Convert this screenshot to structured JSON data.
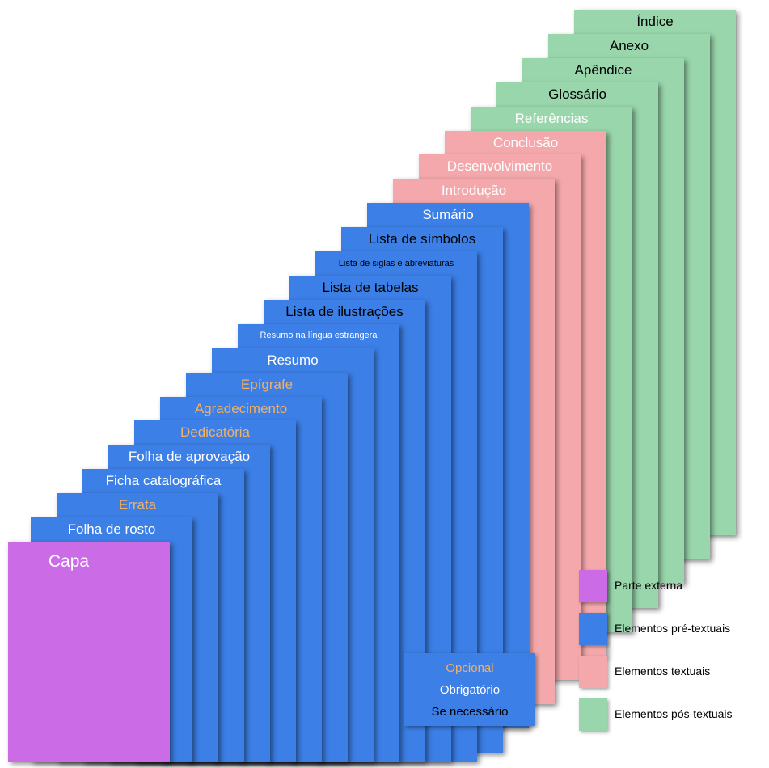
{
  "colors": {
    "externa": "#cc6be6",
    "pre": "#3c7fe6",
    "textual": "#f4a8ab",
    "pos": "#99d6ab",
    "opcional": "#f5b060",
    "obrigatorio": "#ffffff",
    "se_necessario": "#000000"
  },
  "cover": {
    "label": "Capa"
  },
  "pages": [
    {
      "label": "Folha de rosto",
      "category": "pre",
      "status": "obrigatorio"
    },
    {
      "label": "Errata",
      "category": "pre",
      "status": "opcional"
    },
    {
      "label": "Ficha catalográfica",
      "category": "pre",
      "status": "obrigatorio"
    },
    {
      "label": "Folha de aprovação",
      "category": "pre",
      "status": "obrigatorio"
    },
    {
      "label": "Dedicatória",
      "category": "pre",
      "status": "opcional"
    },
    {
      "label": "Agradecimento",
      "category": "pre",
      "status": "opcional"
    },
    {
      "label": "Epígrafe",
      "category": "pre",
      "status": "opcional"
    },
    {
      "label": "Resumo",
      "category": "pre",
      "status": "obrigatorio"
    },
    {
      "label": "Resumo na língua estrangera",
      "category": "pre",
      "status": "obrigatorio"
    },
    {
      "label": "Lista de ilustrações",
      "category": "pre",
      "status": "se_necessario"
    },
    {
      "label": "Lista de tabelas",
      "category": "pre",
      "status": "se_necessario"
    },
    {
      "label": "Lista de siglas e abreviaturas",
      "category": "pre",
      "status": "se_necessario"
    },
    {
      "label": "Lista de símbolos",
      "category": "pre",
      "status": "se_necessario"
    },
    {
      "label": "Sumário",
      "category": "pre",
      "status": "obrigatorio"
    },
    {
      "label": "Introdução",
      "category": "textual",
      "status": "obrigatorio"
    },
    {
      "label": "Desenvolvimento",
      "category": "textual",
      "status": "obrigatorio"
    },
    {
      "label": "Conclusão",
      "category": "textual",
      "status": "obrigatorio"
    },
    {
      "label": "Referências",
      "category": "pos",
      "status": "obrigatorio"
    },
    {
      "label": "Glossário",
      "category": "pos",
      "status": "se_necessario"
    },
    {
      "label": "Apêndice",
      "category": "pos",
      "status": "se_necessario"
    },
    {
      "label": "Anexo",
      "category": "pos",
      "status": "se_necessario"
    },
    {
      "label": "Índice",
      "category": "pos",
      "status": "se_necessario"
    }
  ],
  "legend": [
    {
      "key": "externa",
      "label": "Parte externa"
    },
    {
      "key": "pre",
      "label": "Elementos pré-textuais"
    },
    {
      "key": "textual",
      "label": "Elementos textuais"
    },
    {
      "key": "pos",
      "label": "Elementos pós-textuais"
    }
  ],
  "key_box": {
    "opcional": "Opcional",
    "obrigatorio": "Obrigatório",
    "se_necessario": "Se necessário"
  }
}
